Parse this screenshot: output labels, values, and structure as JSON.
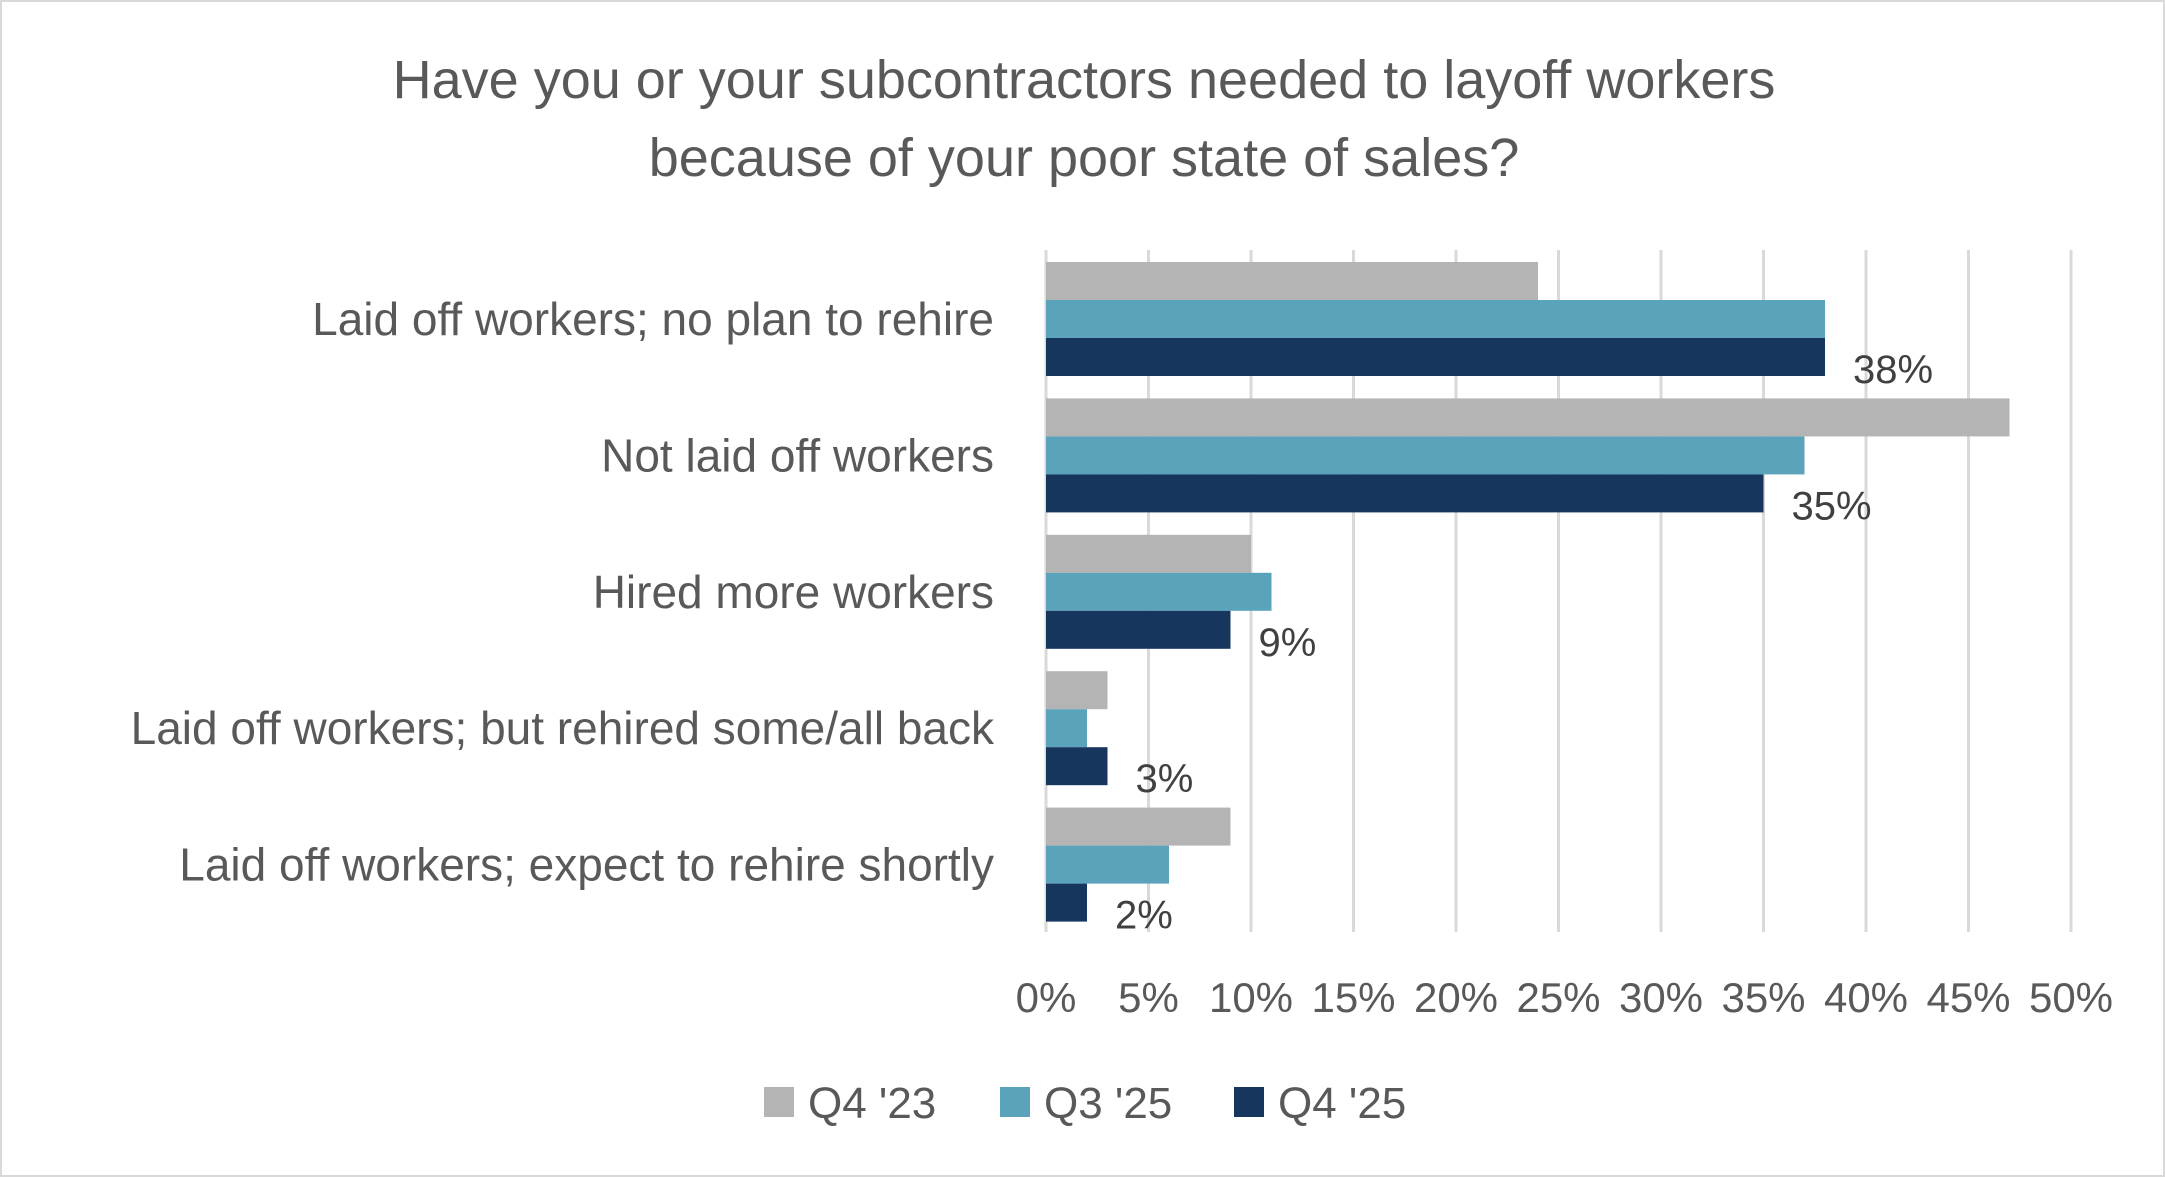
{
  "chart_data": {
    "type": "bar",
    "orientation": "horizontal",
    "title": "Have you or your subcontractors needed to layoff workers because of your poor state of sales?",
    "title_lines": [
      "Have you or your subcontractors needed to layoff workers",
      "because of your poor state of sales?"
    ],
    "categories": [
      "Laid off workers; no plan to rehire",
      "Not laid off workers",
      "Hired more workers",
      "Laid off workers; but rehired some/all back",
      "Laid off workers; expect to rehire shortly"
    ],
    "series": [
      {
        "name": "Q4 '23",
        "color": "#b4b4b4",
        "values": [
          24,
          47,
          10,
          3,
          9
        ]
      },
      {
        "name": "Q3 '25",
        "color": "#5ba3bb",
        "values": [
          38,
          37,
          11,
          2,
          6
        ]
      },
      {
        "name": "Q4 '25",
        "color": "#17365d",
        "values": [
          38,
          35,
          9,
          3,
          2
        ]
      }
    ],
    "data_labels": {
      "series": "Q4 '25",
      "labels": [
        "38%",
        "35%",
        "9%",
        "3%",
        "2%"
      ]
    },
    "xlim": [
      0,
      50
    ],
    "x_ticks": [
      0,
      5,
      10,
      15,
      20,
      25,
      30,
      35,
      40,
      45,
      50
    ],
    "x_tick_labels": [
      "0%",
      "5%",
      "10%",
      "15%",
      "20%",
      "25%",
      "30%",
      "35%",
      "40%",
      "45%",
      "50%"
    ],
    "xlabel": "",
    "ylabel": "",
    "grid": true,
    "legend_position": "bottom"
  }
}
